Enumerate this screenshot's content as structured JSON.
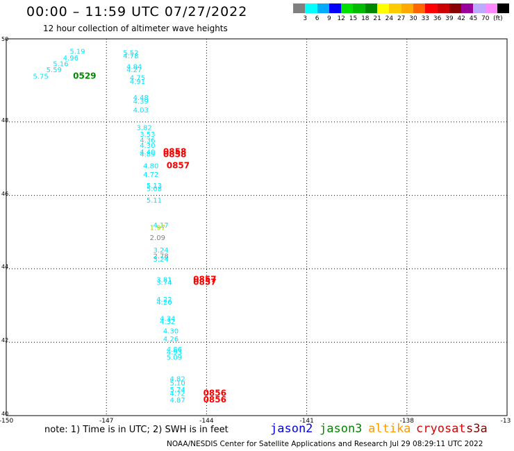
{
  "header": {
    "title": "00:00 – 11:59 UTC 07/27/2022",
    "subtitle": "12 hour collection of altimeter wave heights"
  },
  "legend": {
    "unit": "(ft)",
    "bins": [
      {
        "label": "",
        "color": "#808080"
      },
      {
        "label": "3",
        "color": "#00ffff"
      },
      {
        "label": "6",
        "color": "#00aaff"
      },
      {
        "label": "9",
        "color": "#0000ff"
      },
      {
        "label": "12",
        "color": "#00e000"
      },
      {
        "label": "15",
        "color": "#00bb00"
      },
      {
        "label": "18",
        "color": "#008800"
      },
      {
        "label": "21",
        "color": "#ffff00"
      },
      {
        "label": "24",
        "color": "#ffcc00"
      },
      {
        "label": "27",
        "color": "#ffaa00"
      },
      {
        "label": "30",
        "color": "#ff6600"
      },
      {
        "label": "33",
        "color": "#ff0000"
      },
      {
        "label": "36",
        "color": "#cc0000"
      },
      {
        "label": "39",
        "color": "#880000"
      },
      {
        "label": "42",
        "color": "#990099"
      },
      {
        "label": "45",
        "color": "#bbaaff"
      },
      {
        "label": "70",
        "color": "#ff88ff"
      },
      {
        "label": "",
        "color": "#000000"
      }
    ]
  },
  "axes": {
    "lon_labels": [
      "-150",
      "-147",
      "-144",
      "-141",
      "-138",
      "-13"
    ],
    "lat_labels": [
      "50",
      "48",
      "46",
      "44",
      "42",
      "40"
    ]
  },
  "chart_data": {
    "type": "scatter",
    "xlim": [
      -150,
      -135
    ],
    "ylim": [
      40,
      50
    ],
    "grid": true,
    "points": [
      {
        "lon": -148.1,
        "lat": 49.86,
        "text": "5.19",
        "color": "#00e5ff"
      },
      {
        "lon": -148.3,
        "lat": 49.68,
        "text": "4.96",
        "color": "#00e5ff"
      },
      {
        "lon": -148.6,
        "lat": 49.52,
        "text": "5.16",
        "color": "#00e5ff"
      },
      {
        "lon": -148.8,
        "lat": 49.36,
        "text": "5.59",
        "color": "#00e5ff"
      },
      {
        "lon": -149.2,
        "lat": 49.18,
        "text": "5.75",
        "color": "#00e5ff"
      },
      {
        "lon": -148.0,
        "lat": 49.18,
        "text": "0529",
        "color": "#008800"
      },
      {
        "lon": -146.5,
        "lat": 49.82,
        "text": "5.52",
        "color": "#00e5ff"
      },
      {
        "lon": -146.5,
        "lat": 49.74,
        "text": "4.78",
        "color": "#00e5ff"
      },
      {
        "lon": -146.4,
        "lat": 49.44,
        "text": "4.84",
        "color": "#00e5ff"
      },
      {
        "lon": -146.4,
        "lat": 49.36,
        "text": "4.27",
        "color": "#00e5ff"
      },
      {
        "lon": -146.3,
        "lat": 49.14,
        "text": "4.75",
        "color": "#00e5ff"
      },
      {
        "lon": -146.3,
        "lat": 49.04,
        "text": "4.91",
        "color": "#00e5ff"
      },
      {
        "lon": -146.2,
        "lat": 48.6,
        "text": "4.48",
        "color": "#00e5ff"
      },
      {
        "lon": -146.2,
        "lat": 48.5,
        "text": "4.39",
        "color": "#00e5ff"
      },
      {
        "lon": -146.2,
        "lat": 48.26,
        "text": "4.03",
        "color": "#00e5ff"
      },
      {
        "lon": -146.1,
        "lat": 47.78,
        "text": "3.82",
        "color": "#00e5ff"
      },
      {
        "lon": -146.0,
        "lat": 47.6,
        "text": "3.53",
        "color": "#00e5ff"
      },
      {
        "lon": -146.0,
        "lat": 47.44,
        "text": "4.36",
        "color": "#00e5ff"
      },
      {
        "lon": -146.0,
        "lat": 47.3,
        "text": "4.30",
        "color": "#00e5ff"
      },
      {
        "lon": -146.0,
        "lat": 47.12,
        "text": "4.40",
        "color": "#00e5ff"
      },
      {
        "lon": -146.0,
        "lat": 47.06,
        "text": "4.89",
        "color": "#00e5ff"
      },
      {
        "lon": -145.3,
        "lat": 47.12,
        "text": "0858",
        "color": "#ff0000"
      },
      {
        "lon": -145.3,
        "lat": 47.04,
        "text": "0858",
        "color": "#ff0000"
      },
      {
        "lon": -145.9,
        "lat": 46.74,
        "text": "4.80",
        "color": "#00e5ff"
      },
      {
        "lon": -145.2,
        "lat": 46.74,
        "text": "0857",
        "color": "#ff0000"
      },
      {
        "lon": -145.9,
        "lat": 46.5,
        "text": "4.72",
        "color": "#00e5ff"
      },
      {
        "lon": -145.8,
        "lat": 46.2,
        "text": "5.13",
        "color": "#00e5ff"
      },
      {
        "lon": -145.8,
        "lat": 46.12,
        "text": "5.08",
        "color": "#00e5ff"
      },
      {
        "lon": -145.8,
        "lat": 45.8,
        "text": "5.11",
        "color": "#00e5ff"
      },
      {
        "lon": -145.6,
        "lat": 45.12,
        "text": "4.17",
        "color": "#00e5ff"
      },
      {
        "lon": -145.7,
        "lat": 45.06,
        "text": "1.97",
        "color": "#99dd00"
      },
      {
        "lon": -145.7,
        "lat": 44.78,
        "text": "2.09",
        "color": "#808080"
      },
      {
        "lon": -145.6,
        "lat": 44.44,
        "text": "3.24",
        "color": "#00e5ff"
      },
      {
        "lon": -145.6,
        "lat": 44.28,
        "text": "2.78",
        "color": "#808080"
      },
      {
        "lon": -145.6,
        "lat": 44.2,
        "text": "3.24",
        "color": "#00e5ff"
      },
      {
        "lon": -145.5,
        "lat": 43.64,
        "text": "3.81",
        "color": "#00e5ff"
      },
      {
        "lon": -145.5,
        "lat": 43.56,
        "text": "3.74",
        "color": "#00e5ff"
      },
      {
        "lon": -144.4,
        "lat": 43.64,
        "text": "0857",
        "color": "#ff0000"
      },
      {
        "lon": -144.4,
        "lat": 43.56,
        "text": "0857",
        "color": "#ff0000"
      },
      {
        "lon": -145.5,
        "lat": 43.1,
        "text": "4.22",
        "color": "#00e5ff"
      },
      {
        "lon": -145.5,
        "lat": 43.02,
        "text": "4.20",
        "color": "#00e5ff"
      },
      {
        "lon": -145.4,
        "lat": 42.58,
        "text": "4.34",
        "color": "#00e5ff"
      },
      {
        "lon": -145.4,
        "lat": 42.5,
        "text": "4.32",
        "color": "#00e5ff"
      },
      {
        "lon": -145.3,
        "lat": 42.24,
        "text": "4.30",
        "color": "#00e5ff"
      },
      {
        "lon": -145.3,
        "lat": 42.02,
        "text": "4.26",
        "color": "#00e5ff"
      },
      {
        "lon": -145.2,
        "lat": 41.74,
        "text": "4.86",
        "color": "#00e5ff"
      },
      {
        "lon": -145.2,
        "lat": 41.66,
        "text": "4.93",
        "color": "#00e5ff"
      },
      {
        "lon": -145.2,
        "lat": 41.52,
        "text": "5.09",
        "color": "#00e5ff"
      },
      {
        "lon": -145.1,
        "lat": 40.94,
        "text": "4.82",
        "color": "#00e5ff"
      },
      {
        "lon": -145.1,
        "lat": 40.82,
        "text": "5.10",
        "color": "#00e5ff"
      },
      {
        "lon": -145.1,
        "lat": 40.64,
        "text": "5.74",
        "color": "#00e5ff"
      },
      {
        "lon": -145.1,
        "lat": 40.54,
        "text": "4.72",
        "color": "#00e5ff"
      },
      {
        "lon": -145.1,
        "lat": 40.36,
        "text": "4.87",
        "color": "#00e5ff"
      },
      {
        "lon": -144.1,
        "lat": 40.54,
        "text": "0856",
        "color": "#ff0000"
      },
      {
        "lon": -144.1,
        "lat": 40.36,
        "text": "0856",
        "color": "#ff0000"
      }
    ]
  },
  "footer": {
    "note": "note: 1) Time is in UTC; 2) SWH is in feet",
    "satellites": [
      {
        "name": "jason2",
        "color": "#0000ee"
      },
      {
        "name": "jason3",
        "color": "#008800"
      },
      {
        "name": "altika",
        "color": "#ff9900"
      },
      {
        "name": "cryosat",
        "color": "#dd0000"
      },
      {
        "name": "s3a",
        "color": "#880000"
      }
    ],
    "credit": "NOAA/NESDIS Center for Satellite Applications and Research    Jul 29 08:29:11 UTC 2022"
  }
}
